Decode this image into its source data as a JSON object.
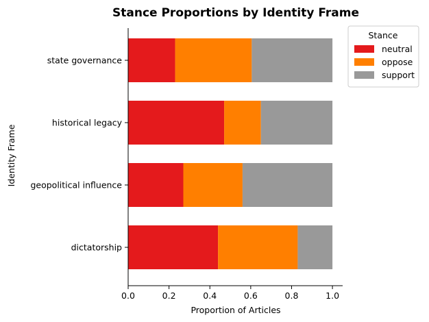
{
  "chart_data": {
    "type": "bar",
    "orientation": "horizontal",
    "stacked": true,
    "title": "Stance Proportions by Identity Frame",
    "xlabel": "Proportion of Articles",
    "ylabel": "Identity Frame",
    "xlim": [
      0,
      1.05
    ],
    "xticks": [
      "0.0",
      "0.2",
      "0.4",
      "0.6",
      "0.8",
      "1.0"
    ],
    "categories": [
      "state governance",
      "historical legacy",
      "geopolitical influence",
      "dictatorship"
    ],
    "series": [
      {
        "name": "neutral",
        "color": "#e41a1c",
        "values": [
          0.23,
          0.47,
          0.27,
          0.44
        ]
      },
      {
        "name": "oppose",
        "color": "#ff7f00",
        "values": [
          0.375,
          0.18,
          0.29,
          0.39
        ]
      },
      {
        "name": "support",
        "color": "#999999",
        "values": [
          0.395,
          0.35,
          0.44,
          0.17
        ]
      }
    ],
    "legend": {
      "title": "Stance",
      "placement": "outside upper right"
    },
    "grid": false
  }
}
